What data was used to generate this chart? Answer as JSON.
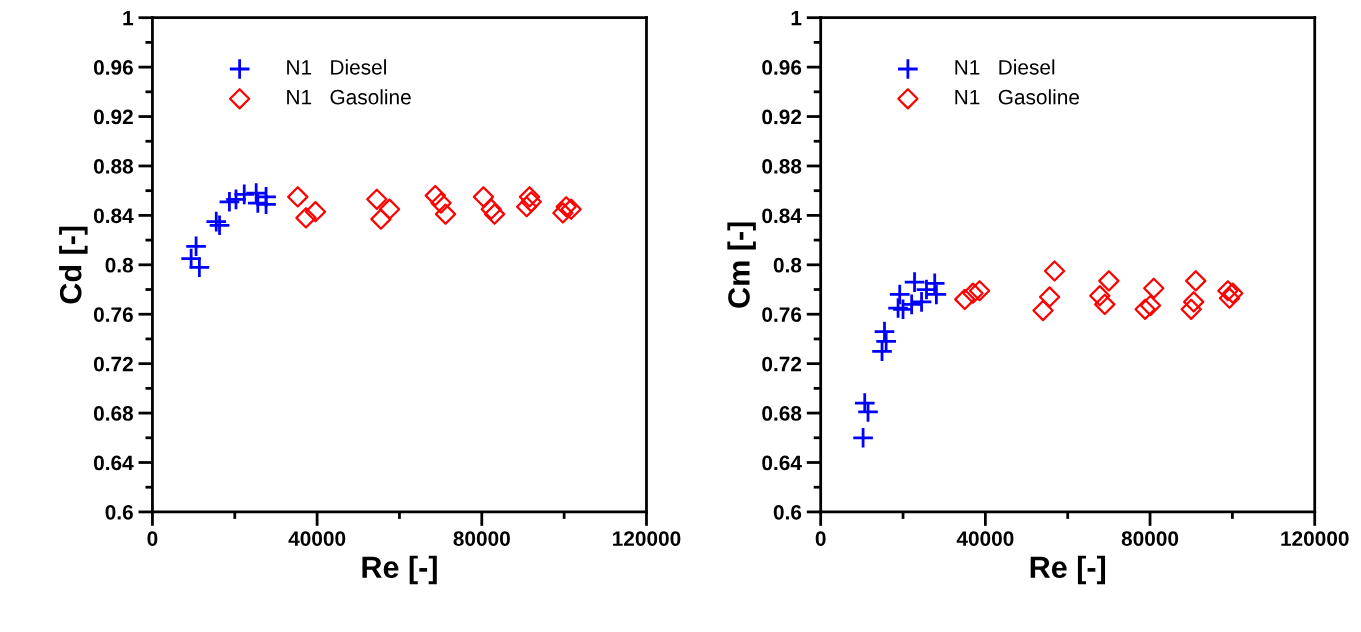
{
  "chart_data": [
    {
      "type": "scatter",
      "xlabel": "Re [-]",
      "ylabel": "Cd [-]",
      "xlim": [
        0,
        120000
      ],
      "ylim": [
        0.6,
        1
      ],
      "xticks": [
        0,
        {
          "value": 20000,
          "label": null
        },
        40000,
        {
          "value": 60000,
          "label": null
        },
        80000,
        {
          "value": 100000,
          "label": null
        },
        120000
      ],
      "yticks": [
        0.6,
        {
          "value": 0.62,
          "label": null
        },
        0.64,
        {
          "value": 0.66,
          "label": null
        },
        0.68,
        {
          "value": 0.7,
          "label": null
        },
        0.72,
        {
          "value": 0.74,
          "label": null
        },
        0.76,
        {
          "value": 0.78,
          "label": null
        },
        0.8,
        {
          "value": 0.82,
          "label": null
        },
        0.84,
        {
          "value": 0.86,
          "label": null
        },
        0.88,
        {
          "value": 0.9,
          "label": null
        },
        0.92,
        {
          "value": 0.94,
          "label": null
        },
        0.96,
        {
          "value": 0.98,
          "label": null
        },
        1
      ],
      "grid": false,
      "legend": "top left",
      "series": [
        {
          "name": "N1   Diesel",
          "color": "#0000ff",
          "marker": "cross",
          "x": [
            10600,
            9400,
            11400,
            15500,
            16300,
            18700,
            20300,
            22300,
            25200,
            25600,
            27600,
            27600
          ],
          "values": [
            0.815,
            0.805,
            0.798,
            0.835,
            0.832,
            0.851,
            0.853,
            0.857,
            0.858,
            0.85,
            0.855,
            0.849
          ]
        },
        {
          "name": "N1   Gasoline",
          "color": "#ff0000",
          "marker": "diamond",
          "x": [
            35300,
            37300,
            39600,
            54500,
            57600,
            55500,
            68700,
            70100,
            71200,
            80400,
            82300,
            83100,
            91600,
            90900,
            92000,
            100500,
            101700,
            99700
          ],
          "values": [
            0.855,
            0.838,
            0.843,
            0.853,
            0.845,
            0.837,
            0.856,
            0.85,
            0.841,
            0.855,
            0.845,
            0.841,
            0.855,
            0.847,
            0.851,
            0.847,
            0.845,
            0.842
          ]
        }
      ]
    },
    {
      "type": "scatter",
      "xlabel": "Re [-]",
      "ylabel": "Cm [-]",
      "xlim": [
        0,
        120000
      ],
      "ylim": [
        0.6,
        1
      ],
      "xticks": [
        0,
        {
          "value": 20000,
          "label": null
        },
        40000,
        {
          "value": 60000,
          "label": null
        },
        80000,
        {
          "value": 100000,
          "label": null
        },
        120000
      ],
      "yticks": [
        0.6,
        {
          "value": 0.62,
          "label": null
        },
        0.64,
        {
          "value": 0.66,
          "label": null
        },
        0.68,
        {
          "value": 0.7,
          "label": null
        },
        0.72,
        {
          "value": 0.74,
          "label": null
        },
        0.76,
        {
          "value": 0.78,
          "label": null
        },
        0.8,
        {
          "value": 0.82,
          "label": null
        },
        0.84,
        {
          "value": 0.86,
          "label": null
        },
        0.88,
        {
          "value": 0.9,
          "label": null
        },
        0.92,
        {
          "value": 0.94,
          "label": null
        },
        0.96,
        {
          "value": 0.98,
          "label": null
        },
        1
      ],
      "grid": false,
      "legend": "top left",
      "series": [
        {
          "name": "N1   Diesel",
          "color": "#0000ff",
          "marker": "cross",
          "x": [
            10300,
            10700,
            11500,
            15500,
            15900,
            14900,
            19200,
            18800,
            20000,
            22800,
            22100,
            24500,
            25700,
            27700,
            28100
          ],
          "values": [
            0.66,
            0.688,
            0.681,
            0.746,
            0.738,
            0.73,
            0.776,
            0.765,
            0.764,
            0.786,
            0.768,
            0.77,
            0.78,
            0.785,
            0.776
          ]
        },
        {
          "name": "N1   Gasoline",
          "color": "#ff0000",
          "marker": "diamond",
          "x": [
            35000,
            37000,
            38600,
            56800,
            55600,
            54000,
            70000,
            67800,
            69000,
            80900,
            80100,
            78800,
            91100,
            90600,
            90000,
            98900,
            100100,
            99300
          ],
          "values": [
            0.772,
            0.777,
            0.779,
            0.795,
            0.774,
            0.763,
            0.787,
            0.775,
            0.768,
            0.781,
            0.767,
            0.764,
            0.787,
            0.77,
            0.764,
            0.779,
            0.777,
            0.773
          ]
        }
      ]
    }
  ]
}
